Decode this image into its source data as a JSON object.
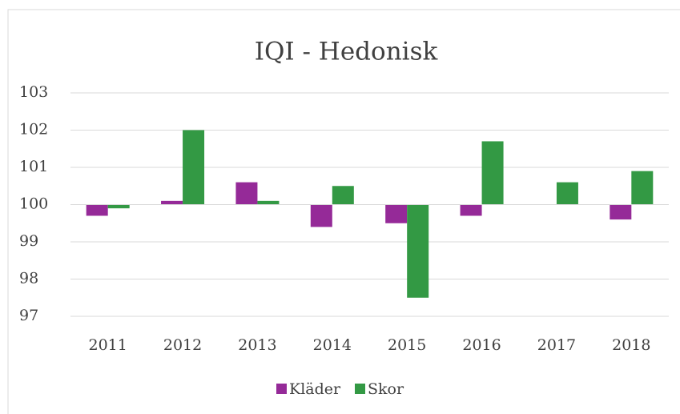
{
  "chart_data": {
    "type": "bar",
    "title": "IQI - Hedonisk",
    "categories": [
      "2011",
      "2012",
      "2013",
      "2014",
      "2015",
      "2016",
      "2017",
      "2018"
    ],
    "series": [
      {
        "name": "Kläder",
        "color": "#952a98",
        "values": [
          99.7,
          100.1,
          100.6,
          99.4,
          99.5,
          99.7,
          100,
          99.6
        ]
      },
      {
        "name": "Skor",
        "color": "#339944",
        "values": [
          99.9,
          102,
          100.1,
          100.5,
          97.5,
          101.7,
          100.6,
          100.9
        ]
      }
    ],
    "ylim": [
      97,
      103
    ],
    "yticks": [
      97,
      98,
      99,
      100,
      101,
      102,
      103
    ],
    "grid": true,
    "x_axis_crosses": 100,
    "legend": "bottom"
  }
}
